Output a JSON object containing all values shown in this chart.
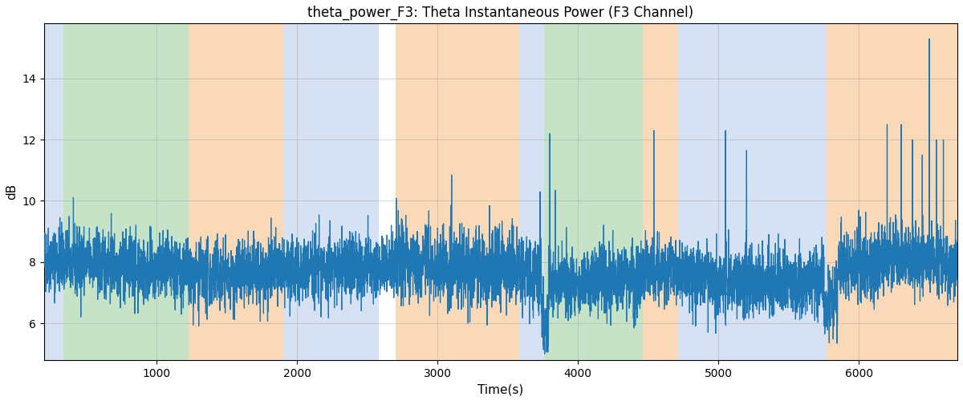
{
  "title": "theta_power_F3: Theta Instantaneous Power (F3 Channel)",
  "xlabel": "Time(s)",
  "ylabel": "dB",
  "xlim": [
    200,
    6700
  ],
  "ylim": [
    4.8,
    15.8
  ],
  "yticks": [
    6,
    8,
    10,
    12,
    14
  ],
  "xticks": [
    1000,
    2000,
    3000,
    4000,
    5000,
    6000
  ],
  "line_color": "#1f77b4",
  "line_width": 0.9,
  "bands": [
    {
      "xmin": 200,
      "xmax": 340,
      "color": "#aec6e8",
      "alpha": 0.5
    },
    {
      "xmin": 340,
      "xmax": 1230,
      "color": "#90c990",
      "alpha": 0.5
    },
    {
      "xmin": 1230,
      "xmax": 1900,
      "color": "#f5c18a",
      "alpha": 0.6
    },
    {
      "xmin": 1900,
      "xmax": 2580,
      "color": "#aec6e8",
      "alpha": 0.5
    },
    {
      "xmin": 2580,
      "xmax": 2700,
      "color": "#ffffff",
      "alpha": 0.0
    },
    {
      "xmin": 2700,
      "xmax": 3580,
      "color": "#f5c18a",
      "alpha": 0.6
    },
    {
      "xmin": 3580,
      "xmax": 3760,
      "color": "#aec6e8",
      "alpha": 0.5
    },
    {
      "xmin": 3760,
      "xmax": 3910,
      "color": "#90c990",
      "alpha": 0.5
    },
    {
      "xmin": 3910,
      "xmax": 4460,
      "color": "#90c990",
      "alpha": 0.5
    },
    {
      "xmin": 4460,
      "xmax": 4710,
      "color": "#f5c18a",
      "alpha": 0.6
    },
    {
      "xmin": 4710,
      "xmax": 5770,
      "color": "#aec6e8",
      "alpha": 0.5
    },
    {
      "xmin": 5770,
      "xmax": 6700,
      "color": "#f5c18a",
      "alpha": 0.6
    }
  ],
  "seed": 42,
  "n_points": 6500,
  "t_start": 200,
  "t_end": 6700
}
